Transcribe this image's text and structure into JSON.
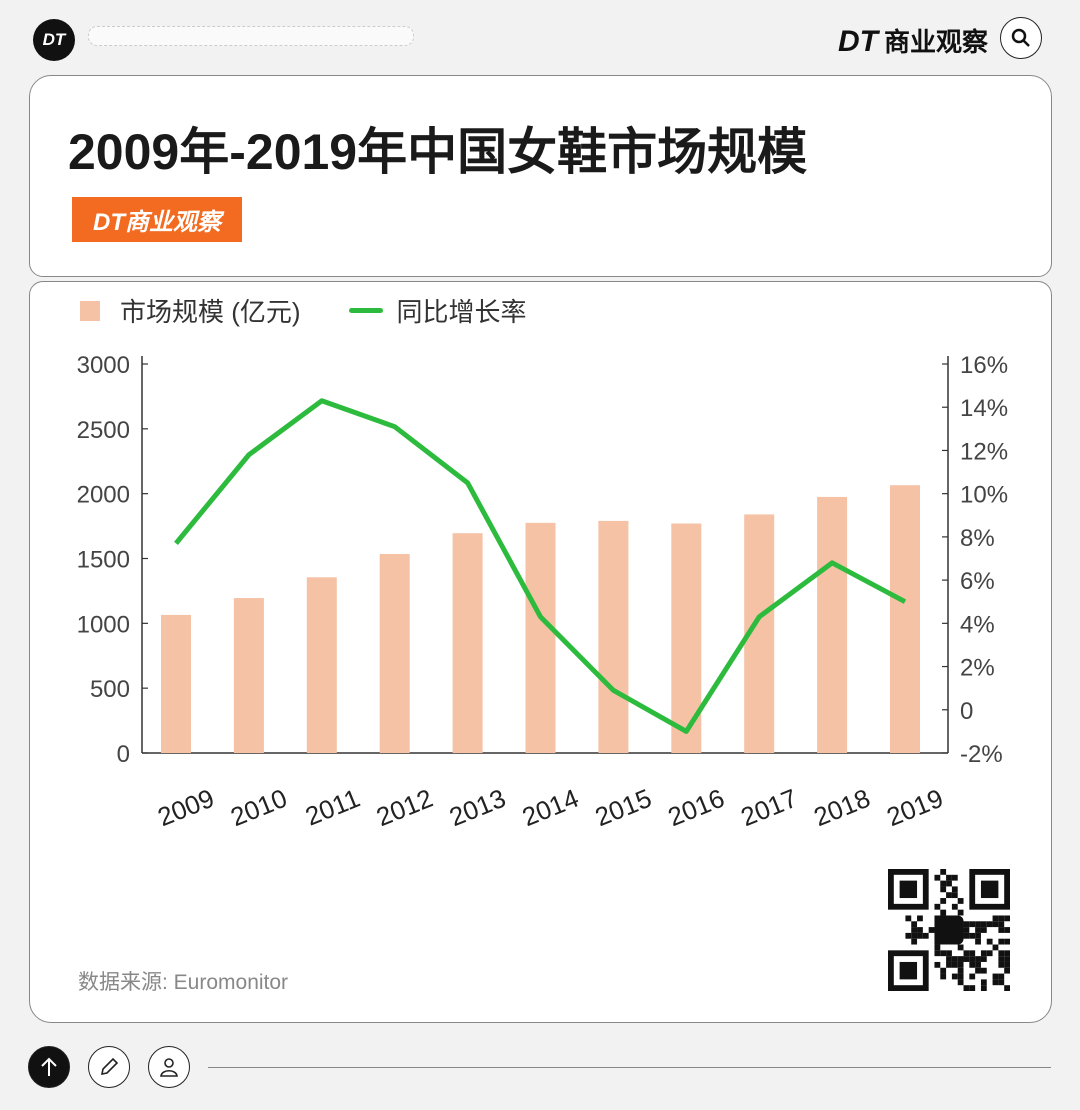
{
  "topbar": {
    "logo": "DT",
    "brand_mark": "DT",
    "brand_name": "商业观察",
    "search_icon": "search-icon"
  },
  "header": {
    "title": "2009年-2019年中国女鞋市场规模",
    "badge": "DT商业观察"
  },
  "legend": {
    "bar": "市场规模 (亿元)",
    "line": "同比增长率"
  },
  "footer": {
    "source": "数据来源: Euromonitor"
  },
  "toolbar": {
    "icons": [
      "arrow-up-icon",
      "pencil-icon",
      "user-icon"
    ]
  },
  "colors": {
    "bar": "#f5c2a5",
    "line": "#2dbb3e",
    "badge": "#f26b21"
  },
  "chart_data": {
    "type": "bar+line",
    "title": "2009年-2019年中国女鞋市场规模",
    "categories": [
      "2009",
      "2010",
      "2011",
      "2012",
      "2013",
      "2014",
      "2015",
      "2016",
      "2017",
      "2018",
      "2019"
    ],
    "series": [
      {
        "name": "市场规模 (亿元)",
        "type": "bar",
        "axis": "left",
        "values": [
          1065,
          1195,
          1355,
          1535,
          1695,
          1775,
          1790,
          1770,
          1840,
          1975,
          2065
        ]
      },
      {
        "name": "同比增长率",
        "type": "line",
        "axis": "right",
        "values": [
          7.7,
          11.8,
          14.3,
          13.1,
          10.5,
          4.3,
          0.9,
          -1.0,
          4.3,
          6.8,
          5.0
        ]
      }
    ],
    "y_left": {
      "range": [
        0,
        3000
      ],
      "ticks": [
        "0",
        "500",
        "1000",
        "1500",
        "2000",
        "2500",
        "3000"
      ]
    },
    "y_right": {
      "range": [
        -2,
        16
      ],
      "unit": "%",
      "ticks": [
        "-2%",
        "0",
        "2%",
        "4%",
        "6%",
        "8%",
        "10%",
        "12%",
        "14%",
        "16%"
      ]
    },
    "grid": false,
    "legend_position": "top-left"
  }
}
